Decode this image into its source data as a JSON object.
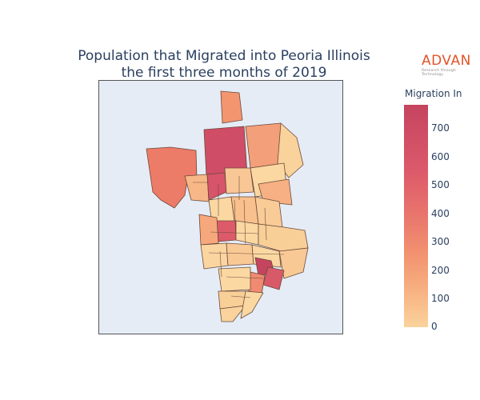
{
  "title": {
    "line1": "Population that Migrated into Peoria Illinois",
    "line2": "the first three months of 2019"
  },
  "logo": {
    "word": "ADVAN",
    "tagline": "Research through Technology",
    "color": "#e2542a"
  },
  "colorbar": {
    "title": "Migration In",
    "ticks": [
      "700",
      "600",
      "500",
      "400",
      "300",
      "200",
      "100",
      "0"
    ],
    "range": [
      0,
      790
    ],
    "colorscale": [
      "#fad39c",
      "#f7b081",
      "#f1906f",
      "#e8736c",
      "#dc5a6a",
      "#c5445f"
    ]
  },
  "map": {
    "background": "#e5ecf6",
    "region_border_color": "#6b4a3a"
  }
}
